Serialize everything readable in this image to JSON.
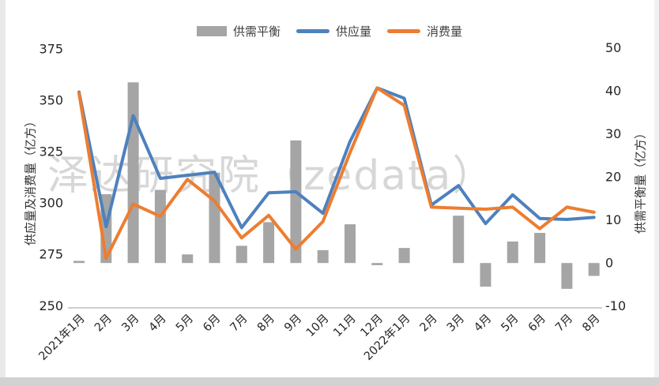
{
  "watermark": "泽达研究院（zedata）",
  "legend": [
    {
      "label": "供需平衡",
      "type": "bar",
      "color": "#A5A5A5"
    },
    {
      "label": "供应量",
      "type": "line",
      "color": "#4E81BD"
    },
    {
      "label": "消费量",
      "type": "line",
      "color": "#ED7D31"
    }
  ],
  "left_axis": {
    "title": "供应量及消费量（亿方）",
    "ticks": [
      375,
      350,
      325,
      300,
      275,
      250
    ],
    "min": 250,
    "max": 375
  },
  "right_axis": {
    "title": "供需平衡量（亿方）",
    "ticks": [
      50,
      40,
      30,
      20,
      10,
      0,
      -10
    ],
    "min": -10,
    "max": 50
  },
  "chart_data": {
    "type": "combo",
    "categories": [
      "2021年1月",
      "2月",
      "3月",
      "4月",
      "5月",
      "6月",
      "7月",
      "8月",
      "9月",
      "10月",
      "11月",
      "12月",
      "2022年1月",
      "2月",
      "3月",
      "4月",
      "5月",
      "6月",
      "7月",
      "8月"
    ],
    "series": [
      {
        "name": "供需平衡",
        "type": "bar",
        "axis": "right",
        "color": "#A5A5A5",
        "values": [
          0.5,
          16,
          42,
          17,
          2,
          21,
          4,
          9.5,
          28.5,
          3,
          9,
          -0.5,
          3.5,
          0,
          11,
          -5.5,
          5,
          7,
          -6,
          -3
        ]
      },
      {
        "name": "供应量",
        "type": "line",
        "axis": "left",
        "color": "#4E81BD",
        "values": [
          354,
          288.5,
          342.5,
          312,
          313.5,
          315,
          288,
          305,
          305.5,
          295,
          330,
          356,
          351,
          299,
          308.5,
          290,
          304,
          292.5,
          292,
          293
        ]
      },
      {
        "name": "消费量",
        "type": "line",
        "axis": "left",
        "color": "#ED7D31",
        "values": [
          353.5,
          273,
          299.5,
          293.5,
          311.5,
          301,
          283,
          294,
          277.5,
          291,
          324.5,
          356,
          347.5,
          298,
          297.5,
          297,
          298,
          287.5,
          298,
          295.5
        ]
      }
    ],
    "left_ylim": [
      250,
      375
    ],
    "right_ylim": [
      -10,
      50
    ],
    "grid": false,
    "legend_position": "top",
    "xlabel": "",
    "ylabel_left": "供应量及消费量（亿方）",
    "ylabel_right": "供需平衡量（亿方）"
  }
}
